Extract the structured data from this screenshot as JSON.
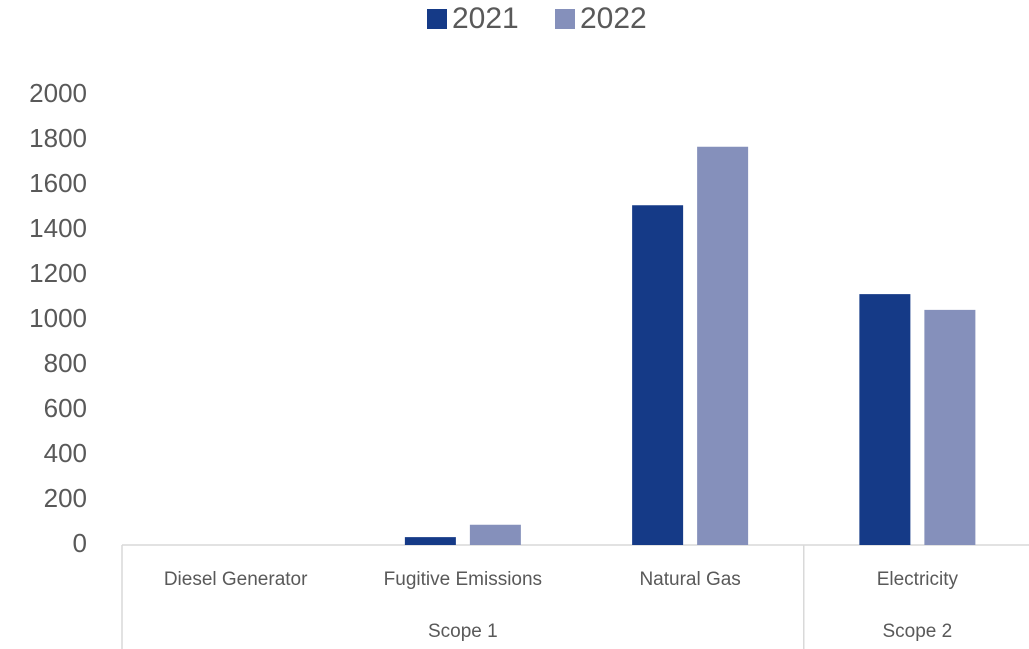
{
  "chart_data": {
    "type": "bar",
    "categories": [
      "Diesel Generator",
      "Fugitive Emissions",
      "Natural Gas",
      "Electricity"
    ],
    "groups": [
      {
        "name": "Scope 1",
        "count": 3
      },
      {
        "name": "Scope 2",
        "count": 1
      }
    ],
    "series": [
      {
        "name": "2021",
        "color": "#153a87",
        "values": [
          0,
          35,
          1510,
          1115
        ]
      },
      {
        "name": "2022",
        "color": "#8590bb",
        "values": [
          0,
          90,
          1770,
          1045
        ]
      }
    ],
    "ylim": [
      0,
      2000
    ],
    "yticks": [
      0,
      200,
      400,
      600,
      800,
      1000,
      1200,
      1400,
      1600,
      1800,
      2000
    ],
    "grid": false,
    "legend": "top"
  }
}
